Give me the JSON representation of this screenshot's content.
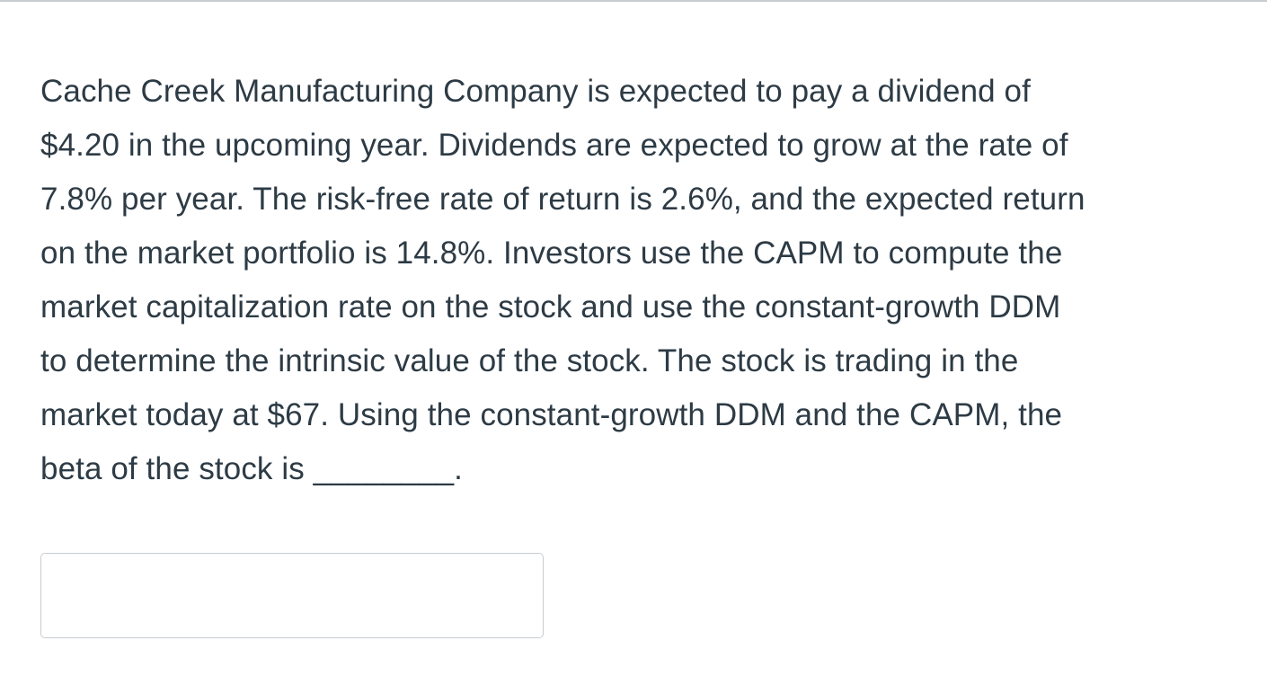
{
  "question": {
    "lines": [
      "Cache Creek Manufacturing Company is expected to pay a dividend of",
      "$4.20 in the upcoming year. Dividends are expected to grow at the rate of",
      "7.8% per year. The risk-free rate of return is 2.6%, and the expected return",
      "on the market portfolio is 14.8%. Investors use the CAPM to compute the",
      "market capitalization rate on the stock and use the constant-growth DDM",
      "to determine the intrinsic value of the stock. The stock is trading in the",
      "market today at $67. Using the constant-growth DDM and the CAPM, the",
      "beta of the stock is ________."
    ]
  },
  "answer": {
    "value": "",
    "placeholder": ""
  }
}
